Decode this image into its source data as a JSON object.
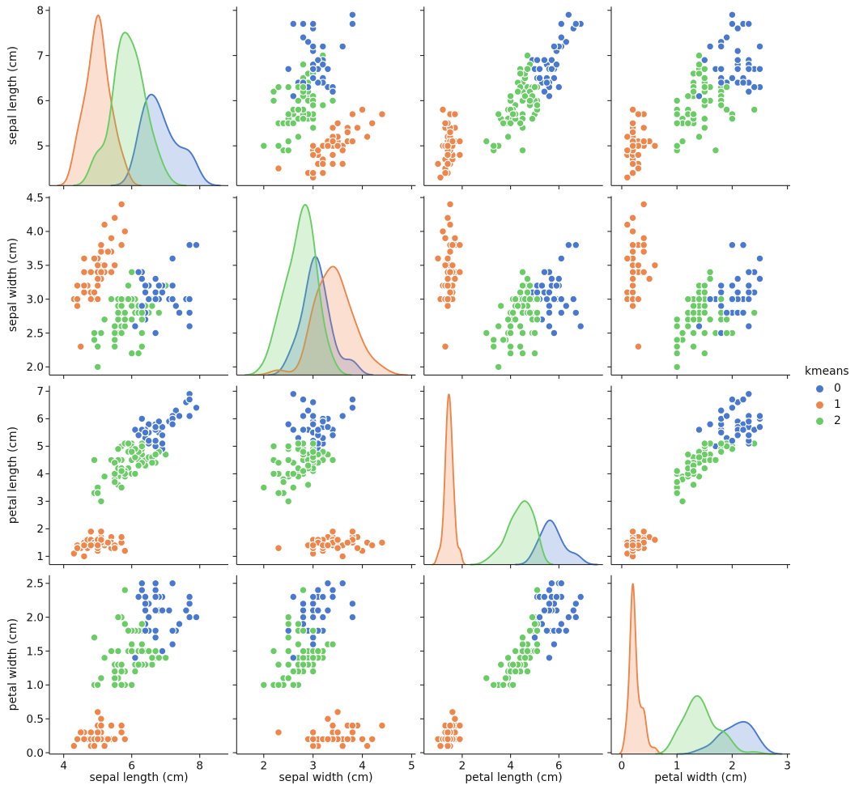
{
  "chart_data": {
    "type": "pairplot",
    "diagonal": "kde",
    "variables": [
      "sepal length (cm)",
      "sepal width (cm)",
      "petal length (cm)",
      "petal width (cm)"
    ],
    "legend": {
      "title": "kmeans",
      "entries": [
        {
          "label": "0",
          "color": "#4878d0"
        },
        {
          "label": "1",
          "color": "#ee854a"
        },
        {
          "label": "2",
          "color": "#6acc64"
        }
      ]
    },
    "style": {
      "kde_fill_alpha": 0.25,
      "marker_edge_color": "#ffffff",
      "spine_color": "#262626",
      "text_color": "#111111",
      "background": "#ffffff"
    },
    "axes": {
      "x_lims": [
        [
          3.58,
          8.84
        ],
        [
          1.45,
          5.08
        ],
        [
          0.42,
          7.82
        ],
        [
          -0.19,
          3.05
        ]
      ],
      "y_lims": [
        [
          4.12,
          8.08
        ],
        [
          1.88,
          4.52
        ],
        [
          0.7,
          7.2
        ],
        [
          -0.02,
          2.62
        ]
      ],
      "x_ticks": [
        [
          4,
          6,
          8
        ],
        [
          2,
          3,
          4,
          5
        ],
        [
          2,
          4,
          6
        ],
        [
          0,
          1,
          2,
          3
        ]
      ],
      "x_tick_labels": [
        [
          "4",
          "6",
          "8"
        ],
        [
          "2",
          "3",
          "4",
          "5"
        ],
        [
          "2",
          "4",
          "6"
        ],
        [
          "0",
          "1",
          "2",
          "3"
        ]
      ],
      "y_ticks": [
        [
          5,
          6,
          7,
          8
        ],
        [
          2.0,
          2.5,
          3.0,
          3.5,
          4.0,
          4.5
        ],
        [
          1,
          2,
          3,
          4,
          5,
          6,
          7
        ],
        [
          0.0,
          0.5,
          1.0,
          1.5,
          2.0,
          2.5
        ]
      ],
      "y_tick_labels": [
        [
          "5",
          "6",
          "7",
          "8"
        ],
        [
          "2.0",
          "2.5",
          "3.0",
          "3.5",
          "4.0",
          "4.5"
        ],
        [
          "1",
          "2",
          "3",
          "4",
          "5",
          "6",
          "7"
        ],
        [
          "0.0",
          "0.5",
          "1.0",
          "1.5",
          "2.0",
          "2.5"
        ]
      ]
    },
    "columns": [
      "sepal length (cm)",
      "sepal width (cm)",
      "petal length (cm)",
      "petal width (cm)",
      "kmeans"
    ],
    "points": [
      [
        5.1,
        3.5,
        1.4,
        0.2,
        1
      ],
      [
        4.9,
        3.0,
        1.4,
        0.2,
        1
      ],
      [
        4.7,
        3.2,
        1.3,
        0.2,
        1
      ],
      [
        4.6,
        3.1,
        1.5,
        0.2,
        1
      ],
      [
        5.0,
        3.6,
        1.4,
        0.2,
        1
      ],
      [
        5.4,
        3.9,
        1.7,
        0.4,
        1
      ],
      [
        4.6,
        3.4,
        1.4,
        0.3,
        1
      ],
      [
        5.0,
        3.4,
        1.5,
        0.2,
        1
      ],
      [
        4.4,
        2.9,
        1.4,
        0.2,
        1
      ],
      [
        4.9,
        3.1,
        1.5,
        0.1,
        1
      ],
      [
        5.4,
        3.7,
        1.5,
        0.2,
        1
      ],
      [
        4.8,
        3.4,
        1.6,
        0.2,
        1
      ],
      [
        4.8,
        3.0,
        1.4,
        0.1,
        1
      ],
      [
        4.3,
        3.0,
        1.1,
        0.1,
        1
      ],
      [
        5.8,
        4.0,
        1.2,
        0.2,
        1
      ],
      [
        5.7,
        4.4,
        1.5,
        0.4,
        1
      ],
      [
        5.4,
        3.9,
        1.3,
        0.4,
        1
      ],
      [
        5.1,
        3.5,
        1.4,
        0.3,
        1
      ],
      [
        5.7,
        3.8,
        1.7,
        0.3,
        1
      ],
      [
        5.1,
        3.8,
        1.5,
        0.3,
        1
      ],
      [
        5.4,
        3.4,
        1.7,
        0.2,
        1
      ],
      [
        5.1,
        3.7,
        1.5,
        0.4,
        1
      ],
      [
        4.6,
        3.6,
        1.0,
        0.2,
        1
      ],
      [
        5.1,
        3.3,
        1.7,
        0.5,
        1
      ],
      [
        4.8,
        3.4,
        1.9,
        0.2,
        1
      ],
      [
        5.0,
        3.0,
        1.6,
        0.2,
        1
      ],
      [
        5.0,
        3.4,
        1.6,
        0.4,
        1
      ],
      [
        5.2,
        3.5,
        1.5,
        0.2,
        1
      ],
      [
        5.2,
        3.4,
        1.4,
        0.2,
        1
      ],
      [
        4.7,
        3.2,
        1.6,
        0.2,
        1
      ],
      [
        4.8,
        3.1,
        1.6,
        0.2,
        1
      ],
      [
        5.4,
        3.4,
        1.5,
        0.4,
        1
      ],
      [
        5.2,
        4.1,
        1.5,
        0.1,
        1
      ],
      [
        5.5,
        4.2,
        1.4,
        0.2,
        1
      ],
      [
        4.9,
        3.1,
        1.5,
        0.2,
        1
      ],
      [
        5.0,
        3.2,
        1.2,
        0.2,
        1
      ],
      [
        5.5,
        3.5,
        1.3,
        0.2,
        1
      ],
      [
        4.9,
        3.6,
        1.4,
        0.1,
        1
      ],
      [
        4.4,
        3.0,
        1.3,
        0.2,
        1
      ],
      [
        5.1,
        3.4,
        1.5,
        0.2,
        1
      ],
      [
        5.0,
        3.5,
        1.3,
        0.3,
        1
      ],
      [
        4.5,
        2.3,
        1.3,
        0.3,
        1
      ],
      [
        4.4,
        3.2,
        1.3,
        0.2,
        1
      ],
      [
        5.0,
        3.5,
        1.6,
        0.6,
        1
      ],
      [
        5.1,
        3.8,
        1.9,
        0.4,
        1
      ],
      [
        4.8,
        3.0,
        1.4,
        0.3,
        1
      ],
      [
        5.1,
        3.8,
        1.6,
        0.2,
        1
      ],
      [
        4.6,
        3.2,
        1.4,
        0.2,
        1
      ],
      [
        5.3,
        3.7,
        1.5,
        0.2,
        1
      ],
      [
        5.0,
        3.3,
        1.4,
        0.2,
        1
      ],
      [
        7.0,
        3.2,
        4.7,
        1.4,
        2
      ],
      [
        6.4,
        3.2,
        4.5,
        1.5,
        2
      ],
      [
        6.9,
        3.1,
        4.9,
        1.5,
        0
      ],
      [
        5.5,
        2.3,
        4.0,
        1.3,
        2
      ],
      [
        6.5,
        2.8,
        4.6,
        1.5,
        2
      ],
      [
        5.7,
        2.8,
        4.5,
        1.3,
        2
      ],
      [
        6.3,
        3.3,
        4.7,
        1.6,
        2
      ],
      [
        4.9,
        2.4,
        3.3,
        1.0,
        2
      ],
      [
        6.6,
        2.9,
        4.6,
        1.3,
        2
      ],
      [
        5.2,
        2.7,
        3.9,
        1.4,
        2
      ],
      [
        5.0,
        2.0,
        3.5,
        1.0,
        2
      ],
      [
        5.9,
        3.0,
        4.2,
        1.5,
        2
      ],
      [
        6.0,
        2.2,
        4.0,
        1.0,
        2
      ],
      [
        6.1,
        2.9,
        4.7,
        1.4,
        2
      ],
      [
        5.6,
        2.9,
        3.6,
        1.3,
        2
      ],
      [
        6.7,
        3.1,
        4.4,
        1.4,
        2
      ],
      [
        5.6,
        3.0,
        4.5,
        1.5,
        2
      ],
      [
        5.8,
        2.7,
        4.1,
        1.0,
        2
      ],
      [
        6.2,
        2.2,
        4.5,
        1.5,
        2
      ],
      [
        5.6,
        2.5,
        3.9,
        1.1,
        2
      ],
      [
        5.9,
        3.2,
        4.8,
        1.8,
        2
      ],
      [
        6.1,
        2.8,
        4.0,
        1.3,
        2
      ],
      [
        6.3,
        2.5,
        4.9,
        1.5,
        2
      ],
      [
        6.1,
        2.8,
        4.7,
        1.2,
        2
      ],
      [
        6.4,
        2.9,
        4.3,
        1.3,
        2
      ],
      [
        6.6,
        3.0,
        4.4,
        1.4,
        2
      ],
      [
        6.8,
        2.8,
        4.8,
        1.4,
        2
      ],
      [
        6.7,
        3.0,
        5.0,
        1.7,
        0
      ],
      [
        6.0,
        2.9,
        4.5,
        1.5,
        2
      ],
      [
        5.7,
        2.6,
        3.5,
        1.0,
        2
      ],
      [
        5.5,
        2.4,
        3.8,
        1.1,
        2
      ],
      [
        5.5,
        2.4,
        3.7,
        1.0,
        2
      ],
      [
        5.8,
        2.7,
        3.9,
        1.2,
        2
      ],
      [
        6.0,
        2.7,
        5.1,
        1.6,
        2
      ],
      [
        5.4,
        3.0,
        4.5,
        1.5,
        2
      ],
      [
        6.0,
        3.4,
        4.5,
        1.6,
        2
      ],
      [
        6.7,
        3.1,
        4.7,
        1.5,
        2
      ],
      [
        6.3,
        2.3,
        4.4,
        1.3,
        2
      ],
      [
        5.6,
        3.0,
        4.1,
        1.3,
        2
      ],
      [
        5.5,
        2.5,
        4.0,
        1.3,
        2
      ],
      [
        5.5,
        2.6,
        4.4,
        1.2,
        2
      ],
      [
        6.1,
        3.0,
        4.6,
        1.4,
        2
      ],
      [
        5.8,
        2.6,
        4.0,
        1.2,
        2
      ],
      [
        5.0,
        2.3,
        3.3,
        1.0,
        2
      ],
      [
        5.6,
        2.7,
        4.2,
        1.3,
        2
      ],
      [
        5.7,
        3.0,
        4.2,
        1.2,
        2
      ],
      [
        5.7,
        2.9,
        4.2,
        1.3,
        2
      ],
      [
        6.2,
        2.9,
        4.3,
        1.3,
        2
      ],
      [
        5.1,
        2.5,
        3.0,
        1.1,
        2
      ],
      [
        5.7,
        2.8,
        4.1,
        1.3,
        2
      ],
      [
        6.3,
        3.3,
        6.0,
        2.5,
        0
      ],
      [
        5.8,
        2.7,
        5.1,
        1.9,
        2
      ],
      [
        7.1,
        3.0,
        5.9,
        2.1,
        0
      ],
      [
        6.3,
        2.9,
        5.6,
        1.8,
        0
      ],
      [
        6.5,
        3.0,
        5.8,
        2.2,
        0
      ],
      [
        7.6,
        3.0,
        6.6,
        2.1,
        0
      ],
      [
        4.9,
        2.5,
        4.5,
        1.7,
        2
      ],
      [
        7.3,
        2.9,
        6.3,
        1.8,
        0
      ],
      [
        6.7,
        2.5,
        5.8,
        1.8,
        0
      ],
      [
        7.2,
        3.6,
        6.1,
        2.5,
        0
      ],
      [
        6.5,
        3.2,
        5.1,
        2.0,
        0
      ],
      [
        6.4,
        2.7,
        5.3,
        1.9,
        0
      ],
      [
        6.8,
        3.0,
        5.5,
        2.1,
        0
      ],
      [
        5.7,
        2.5,
        5.0,
        2.0,
        2
      ],
      [
        5.8,
        2.8,
        5.1,
        2.4,
        2
      ],
      [
        6.4,
        3.2,
        5.3,
        2.3,
        0
      ],
      [
        6.5,
        3.0,
        5.5,
        1.8,
        0
      ],
      [
        7.7,
        3.8,
        6.7,
        2.2,
        0
      ],
      [
        7.7,
        2.6,
        6.9,
        2.3,
        0
      ],
      [
        6.0,
        2.2,
        5.0,
        1.5,
        2
      ],
      [
        6.9,
        3.2,
        5.7,
        2.3,
        0
      ],
      [
        5.6,
        2.8,
        4.9,
        2.0,
        2
      ],
      [
        7.7,
        2.8,
        6.7,
        2.0,
        0
      ],
      [
        6.3,
        2.7,
        4.9,
        1.8,
        2
      ],
      [
        6.7,
        3.3,
        5.7,
        2.1,
        0
      ],
      [
        7.2,
        3.2,
        6.0,
        1.8,
        0
      ],
      [
        6.2,
        2.8,
        4.8,
        1.8,
        2
      ],
      [
        6.1,
        3.0,
        4.9,
        1.8,
        2
      ],
      [
        6.4,
        2.8,
        5.6,
        2.1,
        0
      ],
      [
        7.2,
        3.0,
        5.8,
        1.6,
        0
      ],
      [
        7.4,
        2.8,
        6.1,
        1.9,
        0
      ],
      [
        7.9,
        3.8,
        6.4,
        2.0,
        0
      ],
      [
        6.4,
        2.8,
        5.6,
        2.2,
        0
      ],
      [
        6.3,
        2.8,
        5.1,
        1.5,
        2
      ],
      [
        6.1,
        2.6,
        5.6,
        1.4,
        0
      ],
      [
        7.7,
        3.0,
        6.1,
        2.3,
        0
      ],
      [
        6.3,
        3.4,
        5.6,
        2.4,
        0
      ],
      [
        6.4,
        3.1,
        5.5,
        1.8,
        0
      ],
      [
        6.0,
        3.0,
        4.8,
        1.8,
        2
      ],
      [
        6.9,
        3.1,
        5.4,
        2.1,
        0
      ],
      [
        6.7,
        3.1,
        5.6,
        2.4,
        0
      ],
      [
        6.9,
        3.1,
        5.1,
        2.3,
        0
      ],
      [
        5.8,
        2.7,
        5.1,
        1.9,
        2
      ],
      [
        6.8,
        3.2,
        5.9,
        2.3,
        0
      ],
      [
        6.7,
        3.3,
        5.7,
        2.5,
        0
      ],
      [
        6.7,
        3.0,
        5.2,
        2.3,
        0
      ],
      [
        6.3,
        2.5,
        5.0,
        1.9,
        2
      ],
      [
        6.5,
        3.0,
        5.2,
        2.0,
        0
      ],
      [
        6.2,
        3.4,
        5.4,
        2.3,
        0
      ],
      [
        5.9,
        3.0,
        5.1,
        1.8,
        2
      ]
    ]
  }
}
